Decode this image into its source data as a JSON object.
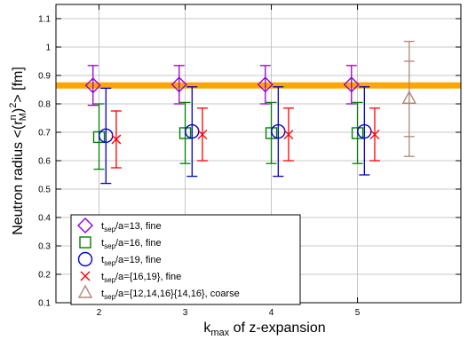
{
  "chart_data": {
    "type": "scatter",
    "xlabel_main": "k",
    "xlabel_sub": "max",
    "xlabel_rest": " of z-expansion",
    "ylabel": "Neutron radius <(r",
    "ylabel_sup": "n",
    "ylabel_sub": "M",
    "ylabel_close": ")",
    "ylabel_sup2": "2",
    "ylabel_end": "> [fm]",
    "xlim": [
      1.5,
      6.2
    ],
    "ylim": [
      0.1,
      1.15
    ],
    "xticks": [
      {
        "value": 2,
        "label": "2"
      },
      {
        "value": 3,
        "label": "3"
      },
      {
        "value": 4,
        "label": "4"
      },
      {
        "value": 5,
        "label": "5"
      }
    ],
    "yticks": [
      {
        "value": 0.1,
        "label": "0.1"
      },
      {
        "value": 0.2,
        "label": "0.2"
      },
      {
        "value": 0.3,
        "label": "0.3"
      },
      {
        "value": 0.4,
        "label": "0.4"
      },
      {
        "value": 0.5,
        "label": "0.5"
      },
      {
        "value": 0.6,
        "label": "0.6"
      },
      {
        "value": 0.7,
        "label": "0.7"
      },
      {
        "value": 0.8,
        "label": "0.8"
      },
      {
        "value": 0.9,
        "label": "0.9"
      },
      {
        "value": 1.0,
        "label": "1"
      },
      {
        "value": 1.1,
        "label": "1.1"
      }
    ],
    "grid": true,
    "band": {
      "value": 0.865,
      "color": "#ffa500"
    },
    "legend_placement": "bottom-left",
    "series": [
      {
        "key": "t13",
        "marker": "diamond",
        "color": "#9400d3",
        "legend_pre": "t",
        "legend_sub": "sep",
        "legend_post": "/a=13, fine",
        "points": [
          {
            "x": 1.93,
            "y": 0.865,
            "lo": 0.795,
            "hi": 0.935
          },
          {
            "x": 2.93,
            "y": 0.868,
            "lo": 0.8,
            "hi": 0.935
          },
          {
            "x": 3.93,
            "y": 0.868,
            "lo": 0.8,
            "hi": 0.935
          },
          {
            "x": 4.93,
            "y": 0.868,
            "lo": 0.8,
            "hi": 0.935
          }
        ]
      },
      {
        "key": "t16",
        "marker": "square",
        "color": "#008000",
        "legend_pre": "t",
        "legend_sub": "sep",
        "legend_post": "/a=16, fine",
        "points": [
          {
            "x": 2.0,
            "y": 0.683,
            "lo": 0.57,
            "hi": 0.8
          },
          {
            "x": 3.0,
            "y": 0.697,
            "lo": 0.59,
            "hi": 0.805
          },
          {
            "x": 4.0,
            "y": 0.697,
            "lo": 0.59,
            "hi": 0.805
          },
          {
            "x": 5.0,
            "y": 0.697,
            "lo": 0.59,
            "hi": 0.805
          }
        ]
      },
      {
        "key": "t19",
        "marker": "circle",
        "color": "#0000cd",
        "legend_pre": "t",
        "legend_sub": "sep",
        "legend_post": "/a=19, fine",
        "points": [
          {
            "x": 2.08,
            "y": 0.688,
            "lo": 0.52,
            "hi": 0.855
          },
          {
            "x": 3.08,
            "y": 0.703,
            "lo": 0.545,
            "hi": 0.86
          },
          {
            "x": 4.08,
            "y": 0.703,
            "lo": 0.545,
            "hi": 0.86
          },
          {
            "x": 5.08,
            "y": 0.703,
            "lo": 0.55,
            "hi": 0.86
          }
        ]
      },
      {
        "key": "t1619",
        "marker": "cross",
        "color": "#ff0000",
        "legend_pre": "t",
        "legend_sub": "sep",
        "legend_post": "/a={16,19}, fine",
        "points": [
          {
            "x": 2.2,
            "y": 0.675,
            "lo": 0.575,
            "hi": 0.775
          },
          {
            "x": 3.2,
            "y": 0.692,
            "lo": 0.6,
            "hi": 0.785
          },
          {
            "x": 4.2,
            "y": 0.692,
            "lo": 0.6,
            "hi": 0.785
          },
          {
            "x": 5.2,
            "y": 0.692,
            "lo": 0.6,
            "hi": 0.785
          }
        ]
      },
      {
        "key": "coarse",
        "marker": "triangle",
        "color": "#b08878",
        "legend_pre": "t",
        "legend_sub": "sep",
        "legend_post": "/a={12,14,16}{14,16}, coarse",
        "points": [
          {
            "x": 5.6,
            "y": 0.818,
            "lo": 0.615,
            "hi": 1.02,
            "lo2": 0.685,
            "hi2": 0.95
          }
        ]
      }
    ]
  }
}
